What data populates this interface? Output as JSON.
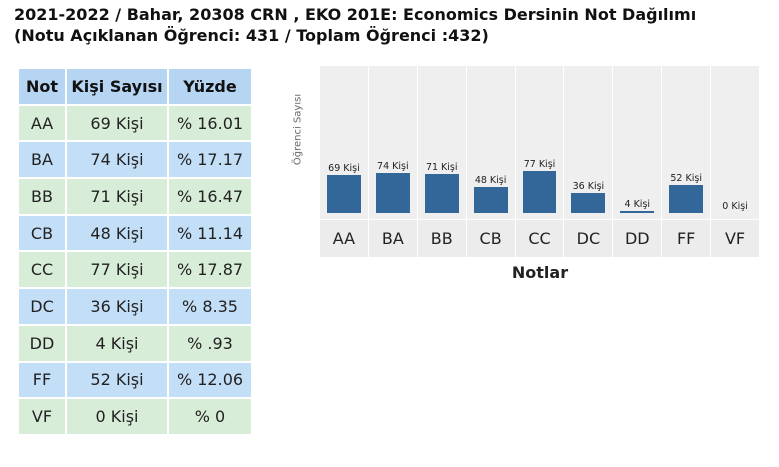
{
  "header": {
    "line1": "2021-2022 / Bahar, 20308 CRN , EKO 201E: Economics Dersinin Not Dağılımı",
    "line2": "(Notu Açıklanan Öğrenci: 431 / Toplam Öğrenci :432)"
  },
  "table": {
    "headers": [
      "Not",
      "Kişi Sayısı",
      "Yüzde"
    ],
    "rows": [
      {
        "grade": "AA",
        "count": "69 Kişi",
        "percent": "% 16.01"
      },
      {
        "grade": "BA",
        "count": "74 Kişi",
        "percent": "% 17.17"
      },
      {
        "grade": "BB",
        "count": "71 Kişi",
        "percent": "% 16.47"
      },
      {
        "grade": "CB",
        "count": "48 Kişi",
        "percent": "% 11.14"
      },
      {
        "grade": "CC",
        "count": "77 Kişi",
        "percent": "% 17.87"
      },
      {
        "grade": "DC",
        "count": "36 Kişi",
        "percent": "% 8.35"
      },
      {
        "grade": "DD",
        "count": "4 Kişi",
        "percent": "% .93"
      },
      {
        "grade": "FF",
        "count": "52 Kişi",
        "percent": "% 12.06"
      },
      {
        "grade": "VF",
        "count": "0 Kişi",
        "percent": "% 0"
      }
    ]
  },
  "chart_data": {
    "type": "bar",
    "categories": [
      "AA",
      "BA",
      "BB",
      "CB",
      "CC",
      "DC",
      "DD",
      "FF",
      "VF"
    ],
    "values": [
      69,
      74,
      71,
      48,
      77,
      36,
      4,
      52,
      0
    ],
    "data_labels": [
      "69 Kişi",
      "74 Kişi",
      "71 Kişi",
      "48 Kişi",
      "77 Kişi",
      "36 Kişi",
      "4 Kişi",
      "52 Kişi",
      "0 Kişi"
    ],
    "title": "",
    "xlabel": "Notlar",
    "ylabel": "Öğrenci Sayısı",
    "ylim": [
      0,
      280
    ],
    "bar_color": "#336699"
  }
}
